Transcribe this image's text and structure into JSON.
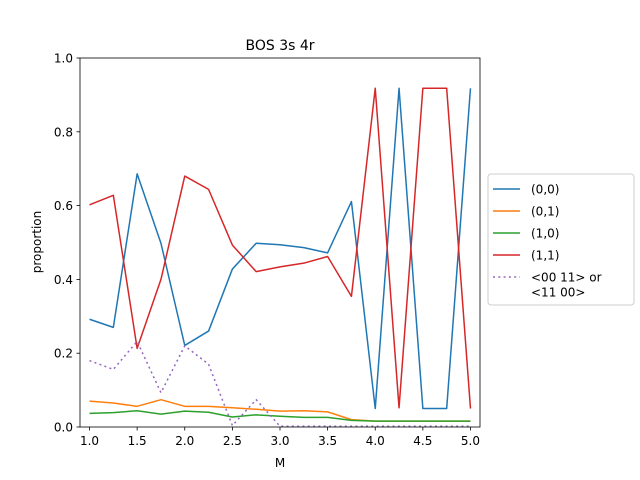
{
  "chart_data": {
    "type": "line",
    "title": "BOS 3s 4r",
    "xlabel": "M",
    "ylabel": "proportion",
    "xlim": [
      0.9,
      5.1
    ],
    "ylim": [
      0.0,
      1.0
    ],
    "xticks": [
      "1.0",
      "1.5",
      "2.0",
      "2.5",
      "3.0",
      "3.5",
      "4.0",
      "4.5",
      "5.0"
    ],
    "yticks": [
      "0.0",
      "0.2",
      "0.4",
      "0.6",
      "0.8",
      "1.0"
    ],
    "grid": false,
    "legend_position": "outside-right",
    "x": [
      1.0,
      1.25,
      1.5,
      1.75,
      2.0,
      2.25,
      2.5,
      2.75,
      3.0,
      3.25,
      3.5,
      3.75,
      4.0,
      4.25,
      4.5,
      4.75,
      5.0
    ],
    "series": [
      {
        "name": "(0,0)",
        "color": "#1f77b4",
        "dashed": false,
        "values": [
          0.292,
          0.27,
          0.686,
          0.498,
          0.221,
          0.26,
          0.428,
          0.498,
          0.494,
          0.486,
          0.472,
          0.611,
          0.05,
          0.918,
          0.05,
          0.05,
          0.918
        ]
      },
      {
        "name": "(0,1)",
        "color": "#ff7f0e",
        "dashed": false,
        "values": [
          0.07,
          0.065,
          0.056,
          0.074,
          0.056,
          0.056,
          0.052,
          0.048,
          0.043,
          0.044,
          0.041,
          0.02,
          0.016,
          0.016,
          0.016,
          0.016,
          0.016
        ]
      },
      {
        "name": "(1,0)",
        "color": "#2ca02c",
        "dashed": false,
        "values": [
          0.037,
          0.039,
          0.044,
          0.035,
          0.043,
          0.04,
          0.027,
          0.033,
          0.029,
          0.026,
          0.026,
          0.018,
          0.016,
          0.016,
          0.016,
          0.016,
          0.016
        ]
      },
      {
        "name": "(1,1)",
        "color": "#d62728",
        "dashed": false,
        "values": [
          0.602,
          0.628,
          0.213,
          0.4,
          0.68,
          0.644,
          0.493,
          0.421,
          0.434,
          0.444,
          0.462,
          0.354,
          0.918,
          0.052,
          0.918,
          0.918,
          0.05
        ]
      },
      {
        "name": "<00 11> or\n<11 00>",
        "color": "#9467bd",
        "dashed": true,
        "values": [
          0.18,
          0.156,
          0.232,
          0.093,
          0.22,
          0.17,
          0.004,
          0.074,
          0.002,
          0.002,
          0.002,
          0.002,
          0.002,
          0.002,
          0.002,
          0.002,
          0.002
        ]
      }
    ]
  }
}
